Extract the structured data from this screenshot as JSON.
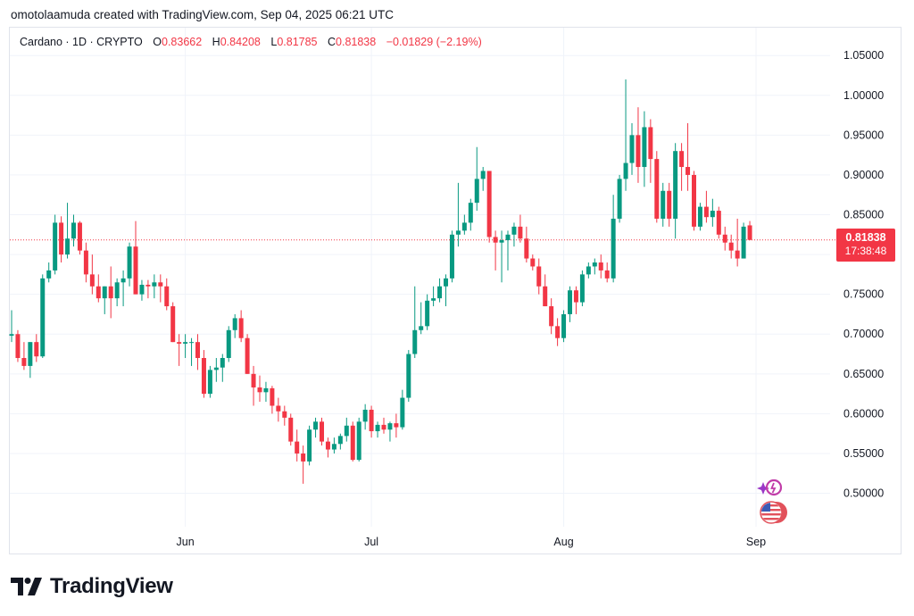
{
  "header": {
    "caption": "omotolaamuda created with TradingView.com, Sep 04, 2025 06:21 UTC"
  },
  "legend": {
    "symbol": "Cardano · 1D · CRYPTO",
    "open_label": "O",
    "open": "0.83662",
    "high_label": "H",
    "high": "0.84208",
    "low_label": "L",
    "low": "0.81785",
    "close_label": "C",
    "close": "0.81838",
    "change": "−0.01829 (−2.19%)"
  },
  "price_tag": {
    "price": "0.81838",
    "countdown": "17:38:48"
  },
  "brand": {
    "name": "TradingView"
  },
  "colors": {
    "up": "#089981",
    "down": "#f23645",
    "grid": "#f0f3fa",
    "axis_text": "#131722"
  },
  "icons": [
    "tradingview-logo-icon",
    "sparkle-icon",
    "us-flag-icon"
  ],
  "chart_data": {
    "type": "candlestick",
    "title": "Cardano · 1D · CRYPTO",
    "last_price": 0.81838,
    "y_ticks": [
      "1.05000",
      "1.00000",
      "0.95000",
      "0.90000",
      "0.85000",
      "0.80000",
      "0.75000",
      "0.70000",
      "0.65000",
      "0.60000",
      "0.55000",
      "0.50000"
    ],
    "ylim": [
      0.458,
      1.085
    ],
    "x_ticks": [
      {
        "label": "Jun",
        "index": 28
      },
      {
        "label": "Jul",
        "index": 58
      },
      {
        "label": "Aug",
        "index": 89
      },
      {
        "label": "Sep",
        "index": 120
      }
    ],
    "candles": [
      [
        0.698,
        0.73,
        0.69,
        0.7
      ],
      [
        0.7,
        0.705,
        0.665,
        0.67
      ],
      [
        0.67,
        0.69,
        0.655,
        0.66
      ],
      [
        0.66,
        0.69,
        0.645,
        0.69
      ],
      [
        0.69,
        0.7,
        0.665,
        0.672
      ],
      [
        0.672,
        0.775,
        0.67,
        0.77
      ],
      [
        0.77,
        0.79,
        0.765,
        0.78
      ],
      [
        0.78,
        0.85,
        0.775,
        0.84
      ],
      [
        0.84,
        0.848,
        0.79,
        0.8
      ],
      [
        0.8,
        0.865,
        0.795,
        0.82
      ],
      [
        0.82,
        0.85,
        0.81,
        0.84
      ],
      [
        0.84,
        0.842,
        0.8,
        0.805
      ],
      [
        0.805,
        0.815,
        0.765,
        0.775
      ],
      [
        0.775,
        0.8,
        0.75,
        0.76
      ],
      [
        0.76,
        0.775,
        0.74,
        0.745
      ],
      [
        0.745,
        0.76,
        0.725,
        0.76
      ],
      [
        0.76,
        0.785,
        0.72,
        0.745
      ],
      [
        0.745,
        0.77,
        0.735,
        0.765
      ],
      [
        0.765,
        0.78,
        0.735,
        0.77
      ],
      [
        0.77,
        0.815,
        0.76,
        0.81
      ],
      [
        0.81,
        0.842,
        0.75,
        0.75
      ],
      [
        0.75,
        0.768,
        0.742,
        0.762
      ],
      [
        0.762,
        0.768,
        0.745,
        0.76
      ],
      [
        0.76,
        0.775,
        0.745,
        0.765
      ],
      [
        0.765,
        0.775,
        0.74,
        0.76
      ],
      [
        0.76,
        0.77,
        0.73,
        0.735
      ],
      [
        0.735,
        0.74,
        0.69,
        0.69
      ],
      [
        0.69,
        0.7,
        0.66,
        0.688
      ],
      [
        0.688,
        0.7,
        0.67,
        0.69
      ],
      [
        0.69,
        0.695,
        0.66,
        0.69
      ],
      [
        0.69,
        0.7,
        0.655,
        0.67
      ],
      [
        0.67,
        0.68,
        0.62,
        0.625
      ],
      [
        0.625,
        0.66,
        0.62,
        0.655
      ],
      [
        0.655,
        0.67,
        0.64,
        0.658
      ],
      [
        0.658,
        0.675,
        0.64,
        0.67
      ],
      [
        0.67,
        0.71,
        0.665,
        0.705
      ],
      [
        0.705,
        0.725,
        0.695,
        0.72
      ],
      [
        0.72,
        0.73,
        0.69,
        0.695
      ],
      [
        0.695,
        0.7,
        0.65,
        0.65
      ],
      [
        0.65,
        0.66,
        0.61,
        0.633
      ],
      [
        0.633,
        0.648,
        0.615,
        0.627
      ],
      [
        0.627,
        0.64,
        0.615,
        0.632
      ],
      [
        0.632,
        0.635,
        0.6,
        0.61
      ],
      [
        0.61,
        0.62,
        0.59,
        0.603
      ],
      [
        0.603,
        0.61,
        0.585,
        0.595
      ],
      [
        0.595,
        0.6,
        0.56,
        0.565
      ],
      [
        0.565,
        0.58,
        0.54,
        0.55
      ],
      [
        0.55,
        0.56,
        0.512,
        0.54
      ],
      [
        0.54,
        0.585,
        0.535,
        0.58
      ],
      [
        0.58,
        0.595,
        0.57,
        0.59
      ],
      [
        0.59,
        0.595,
        0.56,
        0.565
      ],
      [
        0.565,
        0.57,
        0.545,
        0.555
      ],
      [
        0.555,
        0.57,
        0.55,
        0.562
      ],
      [
        0.562,
        0.575,
        0.555,
        0.572
      ],
      [
        0.572,
        0.595,
        0.565,
        0.585
      ],
      [
        0.585,
        0.59,
        0.54,
        0.542
      ],
      [
        0.542,
        0.595,
        0.54,
        0.59
      ],
      [
        0.59,
        0.612,
        0.58,
        0.605
      ],
      [
        0.605,
        0.61,
        0.57,
        0.578
      ],
      [
        0.578,
        0.59,
        0.57,
        0.586
      ],
      [
        0.586,
        0.595,
        0.575,
        0.58
      ],
      [
        0.58,
        0.59,
        0.565,
        0.588
      ],
      [
        0.588,
        0.6,
        0.57,
        0.583
      ],
      [
        0.583,
        0.63,
        0.58,
        0.62
      ],
      [
        0.62,
        0.68,
        0.615,
        0.675
      ],
      [
        0.675,
        0.76,
        0.67,
        0.705
      ],
      [
        0.705,
        0.74,
        0.7,
        0.71
      ],
      [
        0.71,
        0.75,
        0.705,
        0.742
      ],
      [
        0.742,
        0.76,
        0.735,
        0.745
      ],
      [
        0.745,
        0.77,
        0.74,
        0.76
      ],
      [
        0.76,
        0.775,
        0.735,
        0.77
      ],
      [
        0.77,
        0.83,
        0.765,
        0.825
      ],
      [
        0.825,
        0.89,
        0.81,
        0.83
      ],
      [
        0.83,
        0.85,
        0.825,
        0.84
      ],
      [
        0.84,
        0.87,
        0.83,
        0.865
      ],
      [
        0.865,
        0.935,
        0.855,
        0.895
      ],
      [
        0.895,
        0.91,
        0.88,
        0.905
      ],
      [
        0.905,
        0.905,
        0.815,
        0.822
      ],
      [
        0.822,
        0.83,
        0.78,
        0.815
      ],
      [
        0.815,
        0.83,
        0.765,
        0.818
      ],
      [
        0.818,
        0.83,
        0.78,
        0.825
      ],
      [
        0.825,
        0.84,
        0.81,
        0.835
      ],
      [
        0.835,
        0.85,
        0.815,
        0.82
      ],
      [
        0.82,
        0.835,
        0.79,
        0.795
      ],
      [
        0.795,
        0.8,
        0.78,
        0.785
      ],
      [
        0.785,
        0.795,
        0.75,
        0.76
      ],
      [
        0.76,
        0.775,
        0.735,
        0.735
      ],
      [
        0.735,
        0.745,
        0.7,
        0.71
      ],
      [
        0.71,
        0.72,
        0.685,
        0.695
      ],
      [
        0.695,
        0.73,
        0.69,
        0.725
      ],
      [
        0.725,
        0.76,
        0.715,
        0.755
      ],
      [
        0.755,
        0.76,
        0.725,
        0.74
      ],
      [
        0.74,
        0.78,
        0.735,
        0.775
      ],
      [
        0.775,
        0.79,
        0.77,
        0.785
      ],
      [
        0.785,
        0.795,
        0.775,
        0.79
      ],
      [
        0.79,
        0.8,
        0.77,
        0.78
      ],
      [
        0.78,
        0.79,
        0.765,
        0.77
      ],
      [
        0.77,
        0.875,
        0.765,
        0.845
      ],
      [
        0.845,
        0.9,
        0.84,
        0.895
      ],
      [
        0.895,
        1.02,
        0.88,
        0.915
      ],
      [
        0.915,
        0.965,
        0.9,
        0.95
      ],
      [
        0.95,
        0.985,
        0.89,
        0.91
      ],
      [
        0.91,
        0.98,
        0.885,
        0.96
      ],
      [
        0.96,
        0.97,
        0.89,
        0.92
      ],
      [
        0.92,
        0.93,
        0.84,
        0.845
      ],
      [
        0.845,
        0.89,
        0.835,
        0.88
      ],
      [
        0.88,
        0.89,
        0.835,
        0.845
      ],
      [
        0.845,
        0.94,
        0.82,
        0.93
      ],
      [
        0.93,
        0.94,
        0.88,
        0.91
      ],
      [
        0.91,
        0.965,
        0.88,
        0.9
      ],
      [
        0.9,
        0.905,
        0.83,
        0.835
      ],
      [
        0.835,
        0.865,
        0.83,
        0.86
      ],
      [
        0.86,
        0.88,
        0.84,
        0.847
      ],
      [
        0.847,
        0.87,
        0.835,
        0.855
      ],
      [
        0.855,
        0.86,
        0.82,
        0.825
      ],
      [
        0.825,
        0.835,
        0.805,
        0.815
      ],
      [
        0.815,
        0.825,
        0.795,
        0.805
      ],
      [
        0.805,
        0.845,
        0.785,
        0.795
      ],
      [
        0.795,
        0.84,
        0.795,
        0.835
      ],
      [
        0.83662,
        0.84208,
        0.81785,
        0.81838
      ]
    ]
  }
}
